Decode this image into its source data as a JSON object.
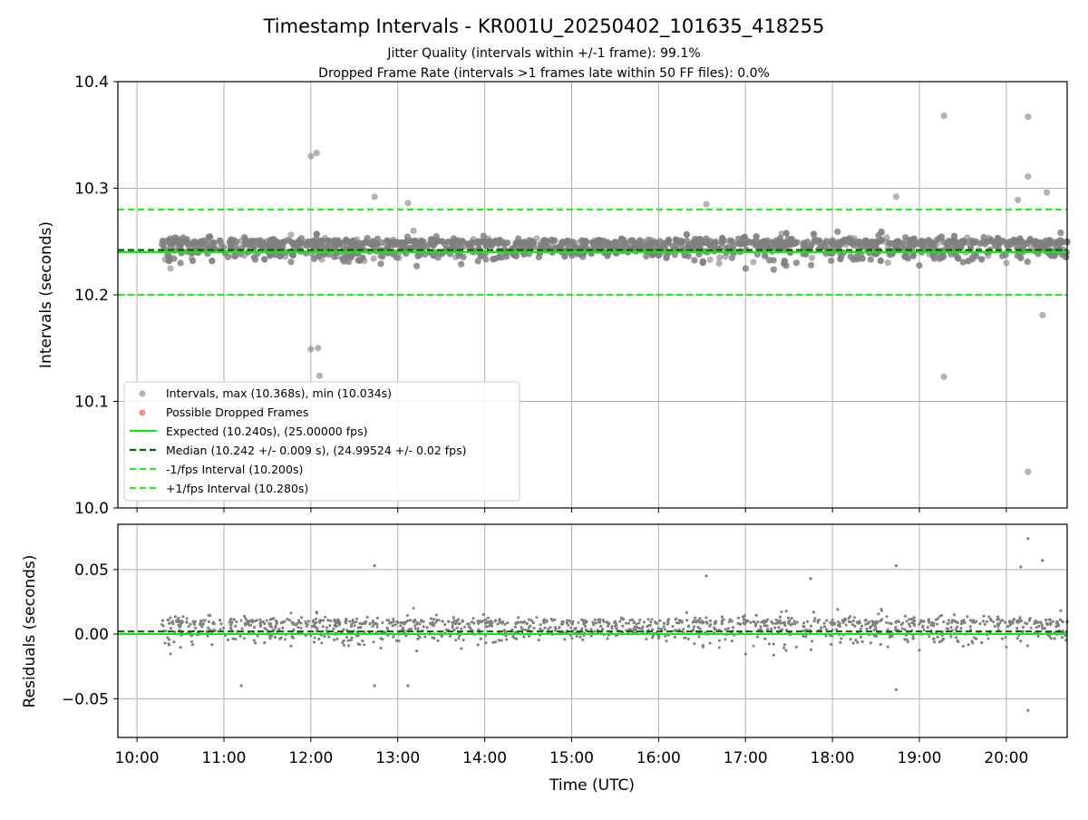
{
  "title": "Timestamp Intervals - KR001U_20250402_101635_418255",
  "subtitle_1": "Jitter Quality (intervals within +/-1 frame): 99.1%",
  "subtitle_2": "Dropped Frame Rate (intervals >1 frames late within 50 FF files): 0.0%",
  "colors": {
    "points": "#808080",
    "dropped": "#ff3b3b",
    "expected": "#22dd22",
    "median": "#006400",
    "band": "#22ee22",
    "grid": "#b0b0b0"
  },
  "chart_data": [
    {
      "type": "scatter",
      "id": "intervals",
      "ylabel": "Intervals (seconds)",
      "xlabel": "",
      "x_range_hours": [
        9.78,
        20.7
      ],
      "ylim": [
        10.0,
        10.4
      ],
      "yticks": [
        "10.0",
        "10.1",
        "10.2",
        "10.3",
        "10.4"
      ],
      "grid": true,
      "legend_position": "lower left",
      "data_start_hour": 10.27,
      "data_end_hour": 20.72,
      "series": [
        {
          "name": "Intervals, max (10.368s), min (10.034s)",
          "kind": "points",
          "center": 10.243,
          "spread": 0.009
        },
        {
          "name": "Possible Dropped Frames",
          "kind": "points",
          "values": []
        },
        {
          "name": "Expected (10.240s), (25.00000 fps)",
          "kind": "hline",
          "y": 10.24
        },
        {
          "name": "Median (10.242 +/- 0.009 s), (24.99524 +/- 0.02 fps)",
          "kind": "hline",
          "y": 10.242
        },
        {
          "name": "-1/fps Interval (10.200s)",
          "kind": "hline",
          "y": 10.2
        },
        {
          "name": "+1/fps Interval (10.280s)",
          "kind": "hline",
          "y": 10.28
        }
      ],
      "outliers": [
        {
          "x": "12:00",
          "y": 10.33
        },
        {
          "x": "12:04",
          "y": 10.333
        },
        {
          "x": "12:00",
          "y": 10.149
        },
        {
          "x": "12:05",
          "y": 10.15
        },
        {
          "x": "12:06",
          "y": 10.124
        },
        {
          "x": "19:17",
          "y": 10.368
        },
        {
          "x": "19:17",
          "y": 10.123
        },
        {
          "x": "20:15",
          "y": 10.367
        },
        {
          "x": "20:15",
          "y": 10.311
        },
        {
          "x": "20:15",
          "y": 10.034
        },
        {
          "x": "20:25",
          "y": 10.181
        },
        {
          "x": "20:28",
          "y": 10.296
        },
        {
          "x": "20:08",
          "y": 10.289
        },
        {
          "x": "12:44",
          "y": 10.292
        },
        {
          "x": "18:44",
          "y": 10.292
        },
        {
          "x": "16:33",
          "y": 10.285
        },
        {
          "x": "13:07",
          "y": 10.286
        }
      ]
    },
    {
      "type": "scatter",
      "id": "residuals",
      "ylabel": "Residuals (seconds)",
      "xlabel": "Time (UTC)",
      "x_range_hours": [
        9.78,
        20.7
      ],
      "ylim": [
        -0.08,
        0.085
      ],
      "yticks": [
        "−0.05",
        "0.00",
        "0.05"
      ],
      "ytick_values": [
        -0.05,
        0.0,
        0.05
      ],
      "xticks": [
        "10:00",
        "11:00",
        "12:00",
        "13:00",
        "14:00",
        "15:00",
        "16:00",
        "17:00",
        "18:00",
        "19:00",
        "20:00"
      ],
      "grid": true,
      "series": [
        {
          "name": "Residuals",
          "kind": "points",
          "center": 0.003,
          "spread": 0.009
        },
        {
          "name": "Median residual",
          "kind": "hline",
          "y": 0.002
        },
        {
          "name": "Zero",
          "kind": "hline",
          "y": 0.0
        }
      ],
      "outliers": [
        {
          "x": "20:15",
          "y": 0.074
        },
        {
          "x": "20:15",
          "y": -0.059
        },
        {
          "x": "20:25",
          "y": 0.057
        },
        {
          "x": "20:10",
          "y": 0.052
        },
        {
          "x": "12:44",
          "y": 0.053
        },
        {
          "x": "18:44",
          "y": 0.053
        },
        {
          "x": "18:44",
          "y": -0.043
        },
        {
          "x": "13:07",
          "y": -0.04
        },
        {
          "x": "12:44",
          "y": -0.04
        },
        {
          "x": "11:12",
          "y": -0.04
        },
        {
          "x": "16:33",
          "y": 0.045
        },
        {
          "x": "17:45",
          "y": 0.043
        }
      ]
    }
  ]
}
